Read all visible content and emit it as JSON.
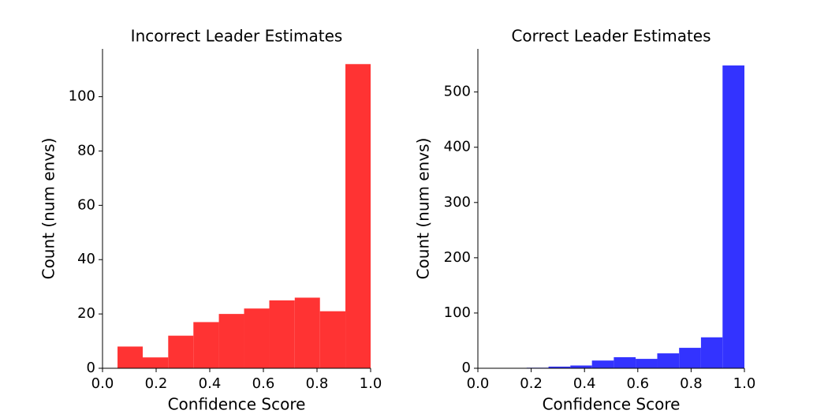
{
  "chart_data": [
    {
      "type": "histogram",
      "title": "Incorrect Leader Estimates",
      "xlabel": "Confidence Score",
      "ylabel": "Count (num envs)",
      "color": "#ff3333",
      "bins": [
        0.056,
        0.15,
        0.245,
        0.339,
        0.434,
        0.528,
        0.622,
        0.717,
        0.811,
        0.906,
        1.0
      ],
      "values": [
        8,
        4,
        12,
        17,
        20,
        22,
        25,
        26,
        21,
        112
      ],
      "xlim": [
        0,
        1
      ],
      "ylim": [
        0,
        117.6
      ],
      "xticks": [
        {
          "value": 0,
          "label": "0.0"
        },
        {
          "value": 0.2,
          "label": "0.2"
        },
        {
          "value": 0.4,
          "label": "0.4"
        },
        {
          "value": 0.6,
          "label": "0.6"
        },
        {
          "value": 0.8,
          "label": "0.8"
        },
        {
          "value": 1,
          "label": "1.0"
        }
      ],
      "yticks": [
        0,
        20,
        40,
        60,
        80,
        100
      ]
    },
    {
      "type": "histogram",
      "title": "Correct Leader Estimates",
      "xlabel": "Confidence Score",
      "ylabel": "Count (num envs)",
      "color": "#3333ff",
      "bins": [
        0.02,
        0.102,
        0.183,
        0.265,
        0.347,
        0.428,
        0.51,
        0.592,
        0.673,
        0.755,
        0.837,
        0.918,
        1.0
      ],
      "values": [
        0,
        0,
        1,
        3,
        5,
        14,
        20,
        17,
        27,
        37,
        56,
        548
      ],
      "xlim": [
        0,
        1
      ],
      "ylim": [
        0,
        578
      ],
      "xticks": [
        {
          "value": 0,
          "label": "0.0"
        },
        {
          "value": 0.2,
          "label": "0.2"
        },
        {
          "value": 0.4,
          "label": "0.4"
        },
        {
          "value": 0.6,
          "label": "0.6"
        },
        {
          "value": 0.8,
          "label": "0.8"
        },
        {
          "value": 1,
          "label": "1.0"
        }
      ],
      "yticks": [
        0,
        100,
        200,
        300,
        400,
        500
      ]
    }
  ]
}
